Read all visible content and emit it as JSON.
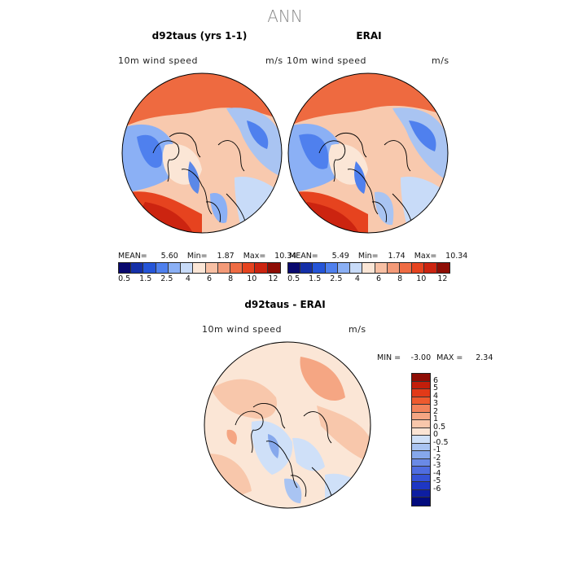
{
  "main_title": "ANN",
  "panels": [
    {
      "title": "d92taus (yrs 1-1)",
      "var_label": "10m wind speed",
      "units": "m/s",
      "stats": {
        "mean_label": "MEAN=",
        "mean": "5.60",
        "min_label": "Min=",
        "min": "1.87",
        "max_label": "Max=",
        "max": "10.34"
      }
    },
    {
      "title": "ERAI",
      "var_label": "10m wind speed",
      "units": "m/s",
      "stats": {
        "mean_label": "MEAN=",
        "mean": "5.49",
        "min_label": "Min=",
        "min": "1.74",
        "max_label": "Max=",
        "max": "10.34"
      }
    }
  ],
  "colorbar": {
    "colors": [
      "#08086e",
      "#1530a8",
      "#2555d8",
      "#4f80ee",
      "#8bb0f5",
      "#c8dbf8",
      "#fbe6d6",
      "#f8c0a4",
      "#f39a78",
      "#ef6c44",
      "#e6431f",
      "#cc2410",
      "#8e0d05"
    ],
    "tick_labels": [
      "0.5",
      "1.5",
      "2.5",
      "4",
      "6",
      "8",
      "10",
      "12"
    ]
  },
  "diff_panel": {
    "title": "d92taus - ERAI",
    "var_label": "10m wind speed",
    "units": "m/s",
    "stats": {
      "min_label": "MIN =",
      "min": "-3.00",
      "max_label": "MAX =",
      "max": "2.34"
    }
  },
  "diff_colorbar": {
    "colors": [
      "#8e0d05",
      "#c21e0b",
      "#e23a18",
      "#ee5a2e",
      "#f2825a",
      "#f5a683",
      "#f8c7ab",
      "#fbe4d4",
      "#cfe0f8",
      "#a9c4f2",
      "#86a8ec",
      "#6a8ae6",
      "#4f6de0",
      "#3552d6",
      "#1e37c4",
      "#0d1ea2",
      "#020b7e"
    ],
    "tick_labels": [
      "6",
      "5",
      "4",
      "3",
      "2",
      "1",
      "0.5",
      "0",
      "-0.5",
      "-1",
      "-2",
      "-3",
      "-4",
      "-5",
      "-6"
    ]
  }
}
